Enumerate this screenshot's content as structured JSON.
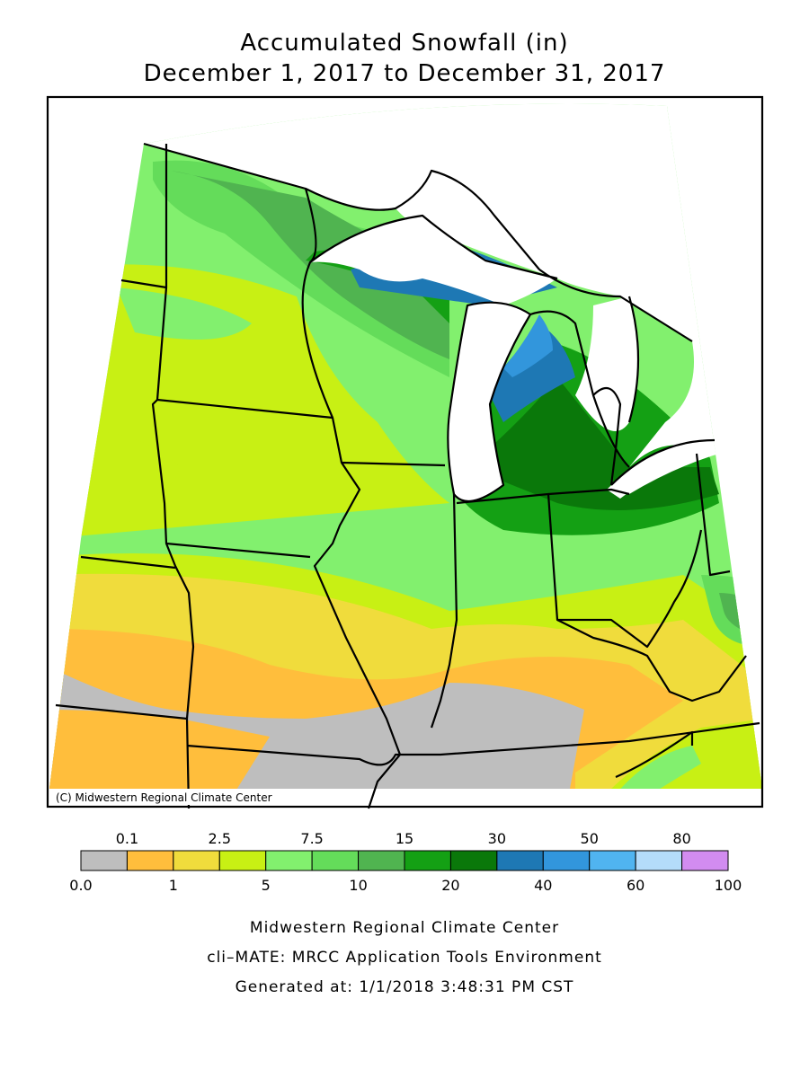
{
  "title": "Accumulated Snowfall (in)",
  "subtitle": "December 1, 2017 to December 31, 2017",
  "credit": "(C) Midwestern Regional Climate Center",
  "legend": {
    "boundaries": [
      {
        "value": 0,
        "label": "0.0"
      },
      0.1,
      1,
      2.5,
      5,
      7.5,
      10,
      15,
      20,
      30,
      40,
      50,
      60,
      80,
      100
    ],
    "colors": [
      "#bebebe",
      "#ffbe3c",
      "#f0dc3c",
      "#c8f014",
      "#82f06e",
      "#64dc5a",
      "#50b450",
      "#14a014",
      "#0a780a",
      "#1e78b4",
      "#3296dc",
      "#50b4f0",
      "#b4dcfa",
      "#d28cf0"
    ]
  },
  "footer": [
    "Midwestern Regional Climate Center",
    "cli–MATE: MRCC Application Tools Environment",
    "Generated at: 1/1/2018 3:48:31 PM CST"
  ]
}
